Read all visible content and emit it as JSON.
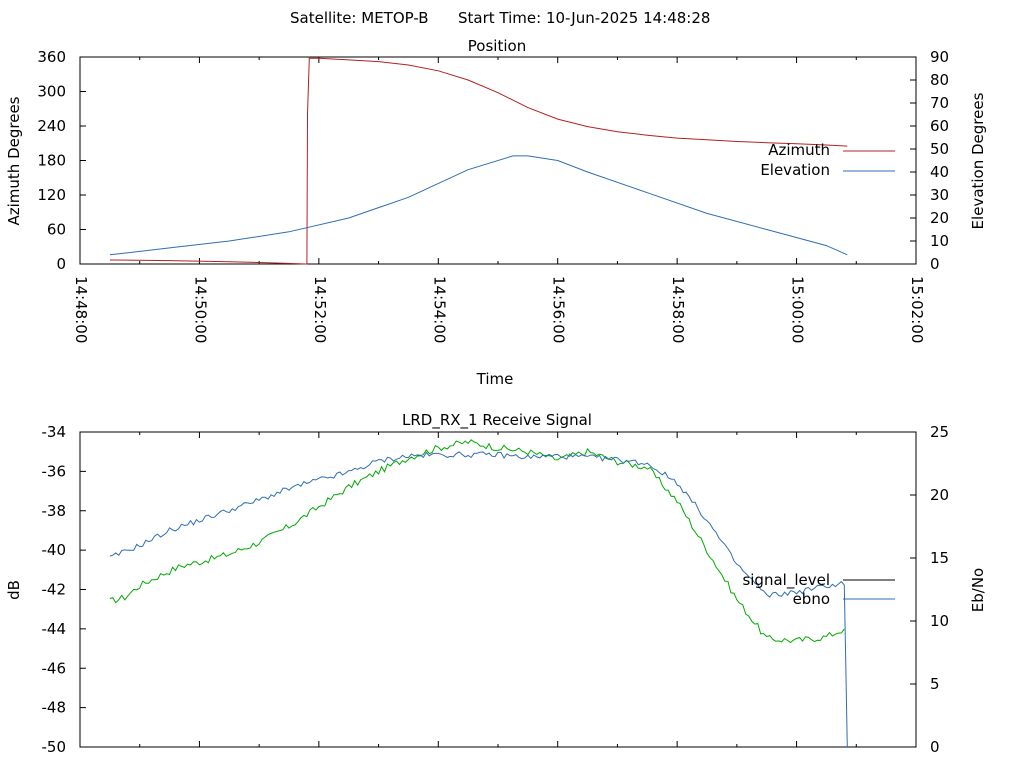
{
  "header": {
    "satellite": "Satellite: METOP-B",
    "start_time": "Start Time: 10-Jun-2025 14:48:28"
  },
  "chart_data": [
    {
      "type": "line",
      "title": "Position",
      "xlabel": "Time",
      "ylabel": "Azimuth Degrees",
      "y2label": "Elevation Degrees",
      "x_ticks": [
        "14:48:00",
        "14:50:00",
        "14:52:00",
        "14:54:00",
        "14:56:00",
        "14:58:00",
        "15:00:00",
        "15:02:00"
      ],
      "x_range_minutes": [
        0,
        14
      ],
      "ylim": [
        0,
        360
      ],
      "y_ticks": [
        0,
        60,
        120,
        180,
        240,
        300,
        360
      ],
      "y2lim": [
        0,
        90
      ],
      "y2_ticks": [
        0,
        10,
        20,
        30,
        40,
        50,
        60,
        70,
        80,
        90
      ],
      "legend_position": "right",
      "series": [
        {
          "name": "Azimuth",
          "color": "#b22222",
          "axis": "left",
          "points": [
            [
              0.5,
              7
            ],
            [
              1.5,
              6
            ],
            [
              2.5,
              4
            ],
            [
              3.5,
              1
            ],
            [
              3.78,
              0
            ],
            [
              3.8,
              0
            ],
            [
              3.81,
              260
            ],
            [
              3.84,
              358
            ],
            [
              4,
              358
            ],
            [
              4.5,
              355
            ],
            [
              5,
              352
            ],
            [
              5.5,
              346
            ],
            [
              6,
              336
            ],
            [
              6.5,
              320
            ],
            [
              7,
              298
            ],
            [
              7.25,
              285
            ],
            [
              7.5,
              272
            ],
            [
              8,
              252
            ],
            [
              8.5,
              239
            ],
            [
              9,
              230
            ],
            [
              9.5,
              224
            ],
            [
              10,
              219
            ],
            [
              10.5,
              216
            ],
            [
              11,
              213
            ],
            [
              11.5,
              211
            ],
            [
              12,
              209
            ],
            [
              12.5,
              207
            ],
            [
              12.85,
              205
            ]
          ]
        },
        {
          "name": "Elevation",
          "color": "#2f6fb0",
          "axis": "right",
          "points": [
            [
              0.5,
              4
            ],
            [
              1.5,
              7
            ],
            [
              2.5,
              10
            ],
            [
              3.5,
              14
            ],
            [
              4.5,
              20
            ],
            [
              5.5,
              29
            ],
            [
              6.5,
              41
            ],
            [
              7.25,
              47
            ],
            [
              7.5,
              47
            ],
            [
              8,
              45
            ],
            [
              8.5,
              40
            ],
            [
              9.5,
              31
            ],
            [
              10.5,
              22
            ],
            [
              11.5,
              15
            ],
            [
              12.5,
              8
            ],
            [
              12.85,
              4
            ]
          ]
        }
      ]
    },
    {
      "type": "line",
      "title": "LRD_RX_1 Receive Signal",
      "ylabel": "dB",
      "y2label": "Eb/No",
      "x_range_minutes": [
        0,
        14
      ],
      "ylim": [
        -50,
        -34
      ],
      "y_ticks": [
        -50,
        -48,
        -46,
        -44,
        -42,
        -40,
        -38,
        -36,
        -34
      ],
      "y2lim": [
        0,
        25
      ],
      "y2_ticks": [
        0,
        5,
        10,
        15,
        20,
        25
      ],
      "legend_position": "right",
      "series": [
        {
          "name": "signal_level",
          "color": "#00aa00",
          "axis": "left",
          "points": [
            [
              0.5,
              -42.6
            ],
            [
              0.75,
              -42.4
            ],
            [
              1,
              -41.8
            ],
            [
              1.4,
              -41.2
            ],
            [
              1.7,
              -40.8
            ],
            [
              2,
              -40.6
            ],
            [
              2.5,
              -40.2
            ],
            [
              3,
              -39.6
            ],
            [
              3.5,
              -38.8
            ],
            [
              4,
              -37.8
            ],
            [
              4.5,
              -36.8
            ],
            [
              5,
              -36
            ],
            [
              5.5,
              -35.3
            ],
            [
              6,
              -34.8
            ],
            [
              6.5,
              -34.5
            ],
            [
              7,
              -34.8
            ],
            [
              7.5,
              -35
            ],
            [
              8,
              -35.4
            ],
            [
              8.5,
              -35
            ],
            [
              9,
              -35.5
            ],
            [
              9.5,
              -35.8
            ],
            [
              10,
              -37.5
            ],
            [
              10.5,
              -40
            ],
            [
              11,
              -42.5
            ],
            [
              11.5,
              -44.5
            ],
            [
              12,
              -44.6
            ],
            [
              12.5,
              -44.4
            ],
            [
              12.8,
              -44
            ]
          ]
        },
        {
          "name": "ebno",
          "color": "#2f6fb0",
          "axis": "right",
          "points": [
            [
              0.5,
              15
            ],
            [
              1,
              16
            ],
            [
              1.5,
              17.2
            ],
            [
              2,
              18
            ],
            [
              2.5,
              18.8
            ],
            [
              3,
              19.6
            ],
            [
              3.5,
              20.5
            ],
            [
              4,
              21.2
            ],
            [
              4.5,
              21.8
            ],
            [
              5,
              22.7
            ],
            [
              5.5,
              23.1
            ],
            [
              6,
              23.2
            ],
            [
              6.5,
              23.2
            ],
            [
              7,
              23.2
            ],
            [
              7.5,
              23
            ],
            [
              8,
              23.1
            ],
            [
              8.5,
              23
            ],
            [
              9,
              22.8
            ],
            [
              9.5,
              22.5
            ],
            [
              10,
              21
            ],
            [
              10.5,
              18
            ],
            [
              11,
              14.5
            ],
            [
              11.5,
              12
            ],
            [
              12,
              12.3
            ],
            [
              12.5,
              12.8
            ],
            [
              12.8,
              13
            ],
            [
              12.85,
              0
            ]
          ]
        }
      ]
    }
  ]
}
